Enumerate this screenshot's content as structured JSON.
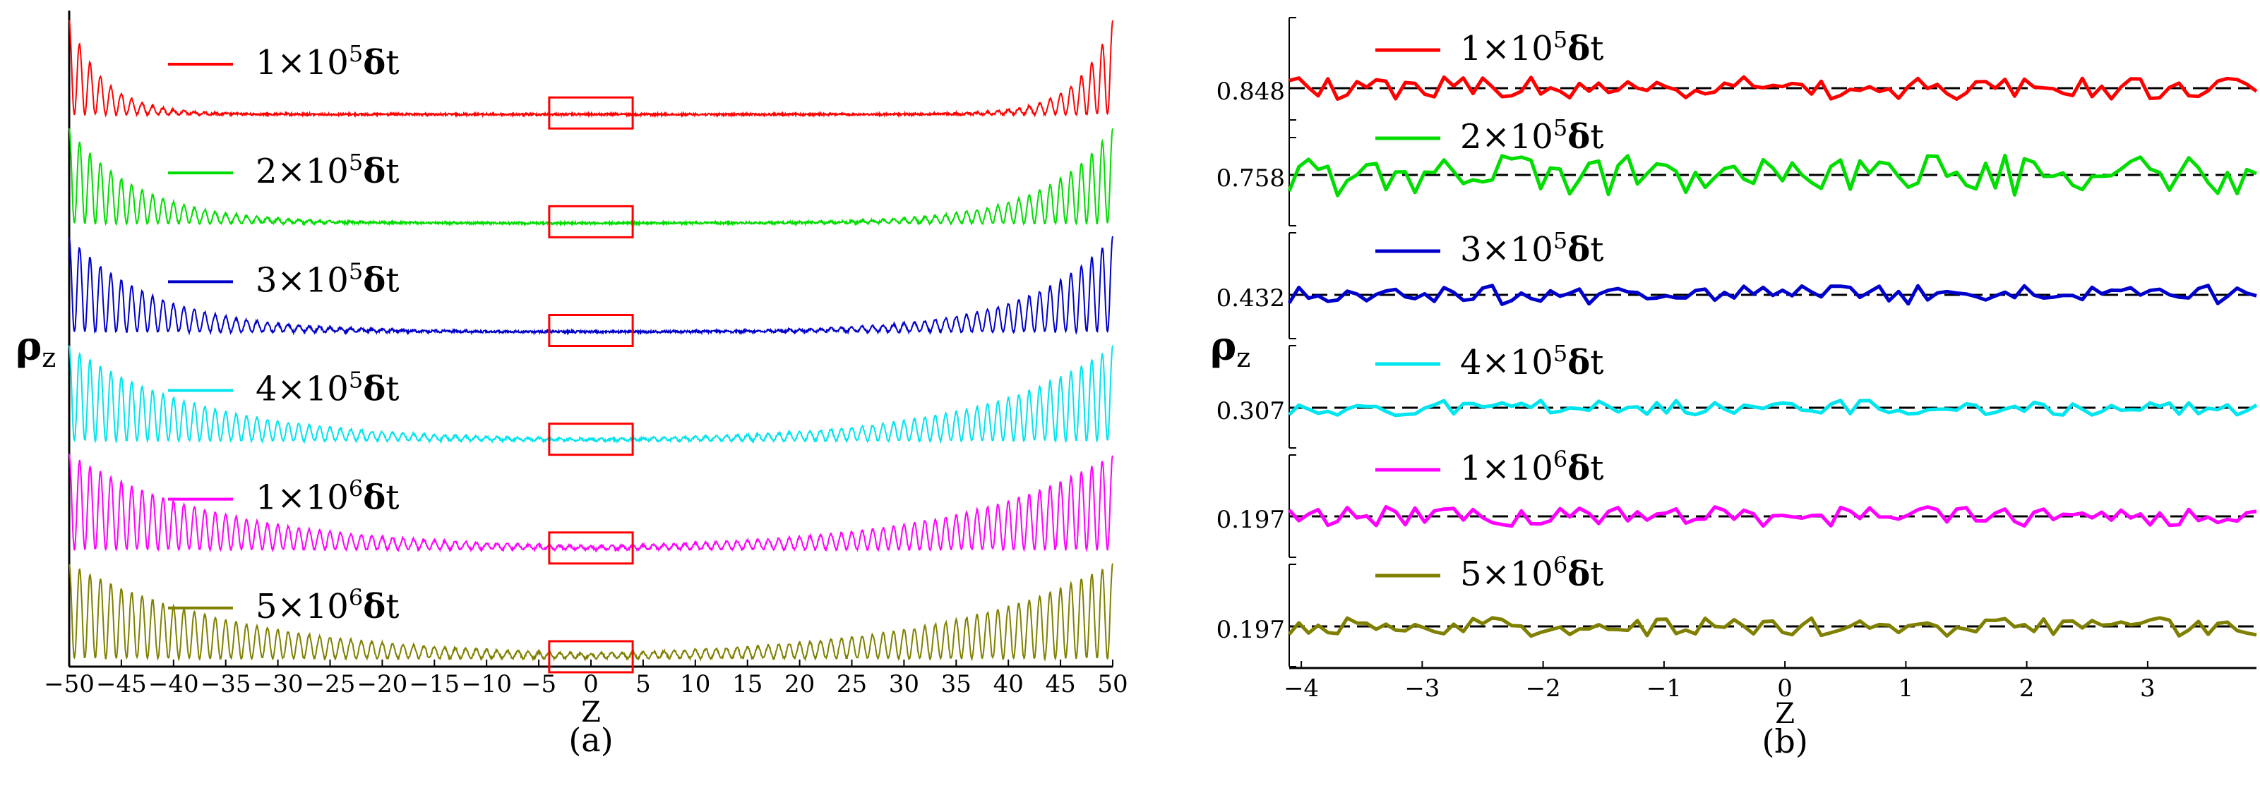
{
  "chart_data": [
    {
      "panel": "(a)",
      "type": "line",
      "xlabel": "Z",
      "ylabel": "ρ",
      "ylabel_sub": "z",
      "xlim": [
        -50,
        50
      ],
      "x_ticks": [
        "−50",
        "−45",
        "−40",
        "−35",
        "−30",
        "−25",
        "−20",
        "−15",
        "−10",
        "−5",
        "0",
        "5",
        "10",
        "15",
        "20",
        "25",
        "30",
        "35",
        "40",
        "45",
        "50"
      ],
      "highlight_box_x": [
        -4,
        4
      ],
      "series": [
        {
          "coef": "1",
          "exp": "5",
          "unit": "δ",
          "t": "t",
          "color": "#ff0000",
          "edge_decay": 6,
          "label": "1×10^5 δt"
        },
        {
          "coef": "2",
          "exp": "5",
          "unit": "δ",
          "t": "t",
          "color": "#00dd00",
          "edge_decay": 12,
          "label": "2×10^5 δt"
        },
        {
          "coef": "3",
          "exp": "5",
          "unit": "δ",
          "t": "t",
          "color": "#0000cc",
          "edge_decay": 15,
          "label": "3×10^5 δt"
        },
        {
          "coef": "4",
          "exp": "5",
          "unit": "δ",
          "t": "t",
          "color": "#00e5ee",
          "edge_decay": 23,
          "label": "4×10^5 δt"
        },
        {
          "coef": "1",
          "exp": "6",
          "unit": "δ",
          "t": "t",
          "color": "#ff00ff",
          "edge_decay": 27,
          "label": "1×10^6 δt"
        },
        {
          "coef": "5",
          "exp": "6",
          "unit": "δ",
          "t": "t",
          "color": "#808000",
          "edge_decay": 30,
          "label": "5×10^6 δt"
        }
      ]
    },
    {
      "panel": "(b)",
      "type": "line",
      "xlabel": "Z",
      "ylabel": "ρ",
      "ylabel_sub": "z",
      "xlim": [
        -4.1,
        3.9
      ],
      "x_ticks": [
        "−4",
        "−3",
        "−2",
        "−1",
        "0",
        "1",
        "2",
        "3"
      ],
      "x_tick_values": [
        -4,
        -3,
        -2,
        -1,
        0,
        1,
        2,
        3
      ],
      "series": [
        {
          "coef": "1",
          "exp": "5",
          "unit": "δ",
          "t": "t",
          "color": "#ff0000",
          "mean": "0.848",
          "noise": 0.3,
          "label": "1×10^5 δt"
        },
        {
          "coef": "2",
          "exp": "5",
          "unit": "δ",
          "t": "t",
          "color": "#00dd00",
          "mean": "0.758",
          "noise": 0.55,
          "label": "2×10^5 δt"
        },
        {
          "coef": "3",
          "exp": "5",
          "unit": "δ",
          "t": "t",
          "color": "#0000cc",
          "mean": "0.432",
          "noise": 0.25,
          "label": "3×10^5 δt"
        },
        {
          "coef": "4",
          "exp": "5",
          "unit": "δ",
          "t": "t",
          "color": "#00e5ee",
          "mean": "0.307",
          "noise": 0.2,
          "label": "4×10^5 δt"
        },
        {
          "coef": "1",
          "exp": "6",
          "unit": "δ",
          "t": "t",
          "color": "#ff00ff",
          "mean": "0.197",
          "noise": 0.25,
          "label": "1×10^6 δt"
        },
        {
          "coef": "5",
          "exp": "6",
          "unit": "δ",
          "t": "t",
          "color": "#808000",
          "mean": "0.197",
          "noise": 0.25,
          "label": "5×10^6 δt"
        }
      ]
    }
  ]
}
